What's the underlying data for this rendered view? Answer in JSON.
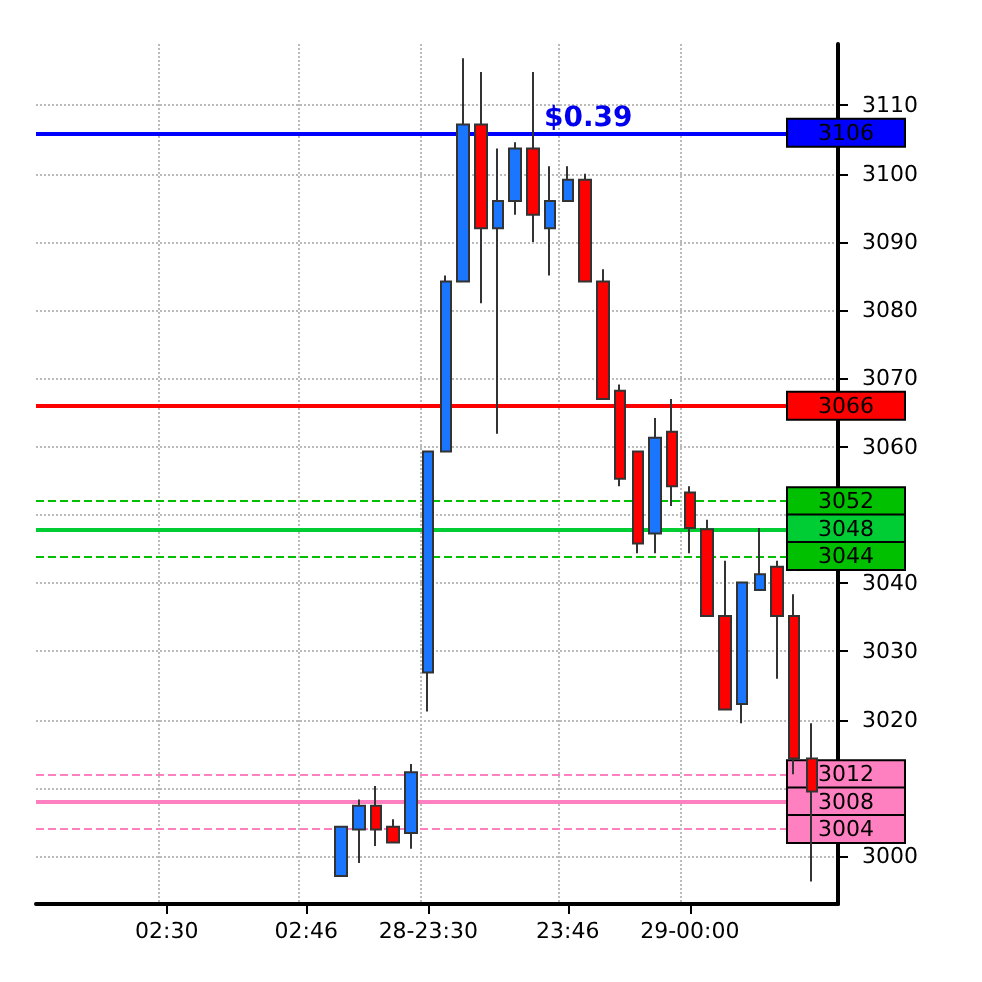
{
  "chart_data": {
    "type": "candlestick",
    "categories": [
      null,
      null,
      null,
      null,
      null,
      null,
      null,
      "02:30",
      null,
      null,
      null,
      null,
      null,
      null,
      null,
      "02:46",
      null,
      null,
      null,
      null,
      null,
      null,
      "28-23:30",
      null,
      null,
      null,
      null,
      null,
      null,
      null,
      "23:46",
      null,
      null,
      null,
      null,
      null,
      null,
      "29-00:00",
      null,
      null,
      null,
      null,
      null,
      null,
      null,
      null
    ],
    "ohlc": [
      null,
      null,
      null,
      null,
      null,
      null,
      null,
      null,
      null,
      null,
      null,
      null,
      null,
      null,
      null,
      null,
      null,
      [
        2997.1,
        3004.3,
        2997.1,
        3004.3
      ],
      [
        3003.9,
        3008.3,
        2999,
        3007.4
      ],
      [
        3007.4,
        3010.3,
        3001.5,
        3003.9
      ],
      [
        3004.3,
        3005.4,
        3002,
        3002
      ],
      [
        3003.4,
        3013.5,
        3001.1,
        3012.3
      ],
      [
        3026.9,
        3059.3,
        3021.2,
        3059.3
      ],
      [
        3059.3,
        3085.1,
        3059.3,
        3084.2
      ],
      [
        3084.2,
        3116.9,
        3084.2,
        3107.2
      ],
      [
        3107.2,
        3114.9,
        3081,
        3092
      ],
      [
        3092,
        3103.7,
        3061.9,
        3096
      ],
      [
        3096,
        3104.6,
        3094,
        3103.7
      ],
      [
        3103.7,
        3114.9,
        3090,
        3094
      ],
      [
        3092,
        3101.1,
        3085.1,
        3096
      ],
      [
        3096,
        3101.1,
        3096,
        3099.1
      ],
      [
        3099.1,
        3100,
        3084.2,
        3084.2
      ],
      [
        3084.2,
        3086,
        3067,
        3067
      ],
      [
        3068.2,
        3069.1,
        3054.2,
        3055.3
      ],
      [
        3059.3,
        3059.3,
        3044.4,
        3045.8
      ],
      [
        3047.3,
        3064.2,
        3044.4,
        3061.3
      ],
      [
        3062.2,
        3067,
        3051.3,
        3054.2
      ],
      [
        3053.3,
        3054.2,
        3044.4,
        3048.1
      ],
      [
        3047.9,
        3049.3,
        3035.2,
        3035.2
      ],
      [
        3035.2,
        3043.3,
        3021.5,
        3021.5
      ],
      [
        3022.3,
        3040.1,
        3019.5,
        3040.1
      ],
      [
        3039,
        3048.1,
        3039,
        3041.3
      ],
      [
        3042.4,
        3043.3,
        3026,
        3035.2
      ],
      [
        3035.2,
        3038.4,
        3012,
        3014.3
      ],
      [
        3014.3,
        3019.5,
        2996.3,
        3009.5
      ],
      null
    ],
    "colors": [
      null,
      null,
      null,
      null,
      null,
      null,
      null,
      null,
      null,
      null,
      null,
      null,
      null,
      null,
      null,
      null,
      null,
      "#1a75ff",
      "#1a75ff",
      "#ff0000",
      "#ff0000",
      "#1a75ff",
      "#1a75ff",
      "#1a75ff",
      "#1a75ff",
      "#ff0000",
      "#1a75ff",
      "#1a75ff",
      "#ff0000",
      "#1a75ff",
      "#1a75ff",
      "#ff0000",
      "#ff0000",
      "#ff0000",
      "#ff0000",
      "#1a75ff",
      "#ff0000",
      "#ff0000",
      "#ff0000",
      "#ff0000",
      "#1a75ff",
      "#1a75ff",
      "#ff0000",
      "#ff0000",
      "#ff0000",
      null
    ],
    "ylim": [
      2993,
      3119
    ],
    "yticks": [
      3000,
      {
        "value": 3010,
        "label": null
      },
      3020,
      3030,
      3040,
      {
        "value": 3050,
        "label": null
      },
      3060,
      3070,
      3080,
      3090,
      3100,
      3110
    ],
    "grid": true,
    "ref_lines": [
      {
        "axis": "y",
        "value": 3106,
        "label": "3106",
        "color": "#0000ff",
        "line_style": "solid"
      },
      {
        "axis": "y",
        "value": 3066,
        "label": "3066",
        "color": "#ff0000",
        "line_style": "solid"
      },
      {
        "axis": "y",
        "value": 3052,
        "label": "3052",
        "color": "#00c000",
        "line_style": "dashed"
      },
      {
        "axis": "y",
        "value": 3048,
        "label": "3048",
        "color": "#00cc33",
        "line_style": "solid"
      },
      {
        "axis": "y",
        "value": 3044,
        "label": "3044",
        "color": "#00c000",
        "line_style": "dashed"
      },
      {
        "axis": "y",
        "value": 3012,
        "label": "3012",
        "color": "#ff80c0",
        "line_style": "dashed"
      },
      {
        "axis": "y",
        "value": 3008,
        "label": "3008",
        "color": "#ff80c0",
        "line_style": "solid"
      },
      {
        "axis": "y",
        "value": 3004,
        "label": "3004",
        "color": "#ff80c0",
        "line_style": "dashed"
      }
    ],
    "annotations": [
      "$0.39"
    ]
  }
}
